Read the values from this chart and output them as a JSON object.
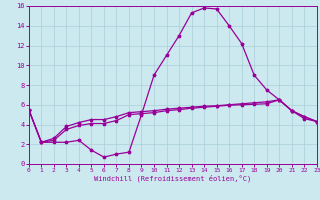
{
  "xlabel": "Windchill (Refroidissement éolien,°C)",
  "x": [
    0,
    1,
    2,
    3,
    4,
    5,
    6,
    7,
    8,
    9,
    10,
    11,
    12,
    13,
    14,
    15,
    16,
    17,
    18,
    19,
    20,
    21,
    22,
    23
  ],
  "line_main": [
    5.5,
    2.2,
    2.2,
    2.2,
    2.4,
    1.4,
    0.7,
    1.0,
    1.2,
    5.0,
    9.0,
    11.0,
    13.0,
    15.3,
    15.8,
    15.7,
    14.0,
    12.2,
    9.0,
    7.5,
    6.5,
    5.4,
    4.6,
    4.3
  ],
  "line_mid1": [
    5.5,
    2.2,
    2.4,
    3.5,
    3.9,
    4.1,
    4.1,
    4.4,
    5.0,
    5.1,
    5.2,
    5.4,
    5.5,
    5.65,
    5.75,
    5.85,
    5.95,
    6.0,
    6.05,
    6.1,
    6.5,
    5.4,
    4.8,
    4.3
  ],
  "line_mid2": [
    5.5,
    2.2,
    2.6,
    3.8,
    4.2,
    4.5,
    4.5,
    4.8,
    5.2,
    5.3,
    5.4,
    5.55,
    5.65,
    5.75,
    5.85,
    5.9,
    6.0,
    6.1,
    6.2,
    6.3,
    6.5,
    5.4,
    4.8,
    4.3
  ],
  "bg_color": "#cce9f0",
  "grid_color": "#aacfd9",
  "line_color": "#990099",
  "xlim": [
    0,
    23
  ],
  "ylim": [
    0,
    16
  ],
  "yticks": [
    0,
    2,
    4,
    6,
    8,
    10,
    12,
    14,
    16
  ],
  "xticks": [
    0,
    1,
    2,
    3,
    4,
    5,
    6,
    7,
    8,
    9,
    10,
    11,
    12,
    13,
    14,
    15,
    16,
    17,
    18,
    19,
    20,
    21,
    22,
    23
  ]
}
